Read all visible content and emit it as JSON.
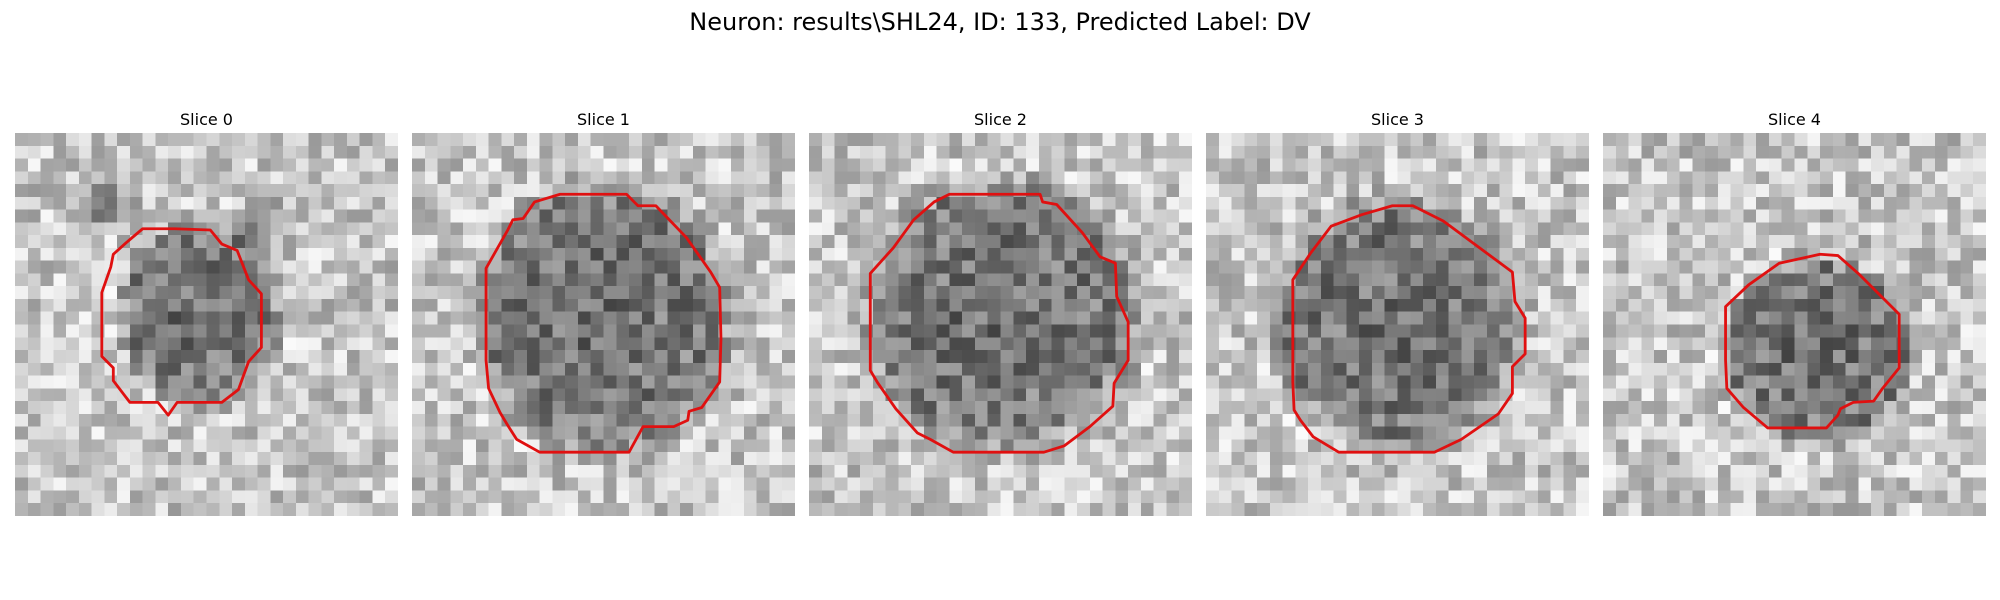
{
  "figure": {
    "title": "Neuron: results\\SHL24, ID: 133, Predicted Label: DV"
  },
  "outline_color": "#e01010",
  "slices": [
    {
      "title": "Slice 0"
    },
    {
      "title": "Slice 1"
    },
    {
      "title": "Slice 2"
    },
    {
      "title": "Slice 3"
    },
    {
      "title": "Slice 4"
    }
  ]
}
